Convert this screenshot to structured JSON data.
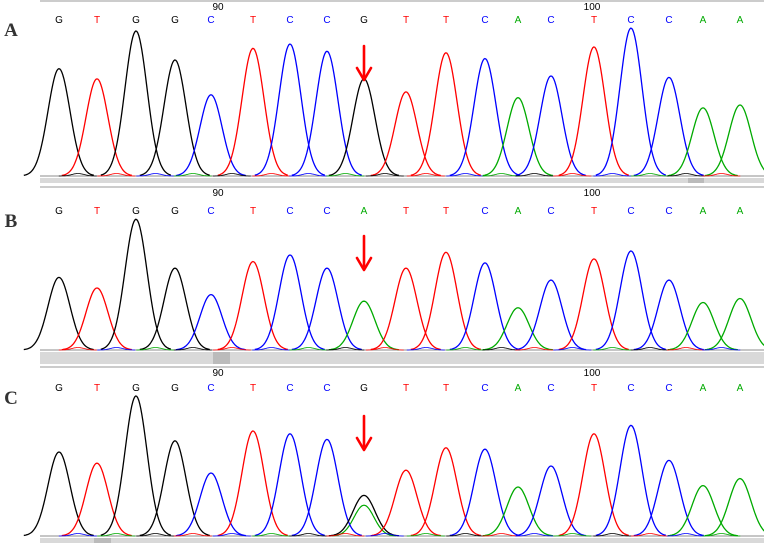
{
  "colors": {
    "G": "#000000",
    "T": "#ff0000",
    "C": "#0000ff",
    "A": "#00aa00",
    "arrow": "#ff0000",
    "ruler": "#999999",
    "baseline_bar": "#d9d9d9",
    "baseline_mark": "#bbbbbb"
  },
  "position_ticks": [
    "90",
    "100"
  ],
  "arrow_icon": "down-arrow-icon",
  "panels": [
    {
      "label": "A",
      "sequence": [
        "G",
        "T",
        "G",
        "G",
        "C",
        "T",
        "C",
        "C",
        "G",
        "T",
        "T",
        "C",
        "A",
        "C",
        "T",
        "C",
        "C",
        "A",
        "A"
      ],
      "peaks": [
        {
          "base": "G",
          "h": 0.74
        },
        {
          "base": "T",
          "h": 0.67
        },
        {
          "base": "G",
          "h": 1.0
        },
        {
          "base": "G",
          "h": 0.8
        },
        {
          "base": "C",
          "h": 0.56
        },
        {
          "base": "T",
          "h": 0.88
        },
        {
          "base": "C",
          "h": 0.91
        },
        {
          "base": "C",
          "h": 0.86
        },
        {
          "base": "G",
          "h": 0.67
        },
        {
          "base": "T",
          "h": 0.58
        },
        {
          "base": "T",
          "h": 0.85
        },
        {
          "base": "C",
          "h": 0.81
        },
        {
          "base": "A",
          "h": 0.54
        },
        {
          "base": "C",
          "h": 0.69
        },
        {
          "base": "T",
          "h": 0.89
        },
        {
          "base": "C",
          "h": 1.02
        },
        {
          "base": "C",
          "h": 0.68
        },
        {
          "base": "A",
          "h": 0.47
        },
        {
          "base": "A",
          "h": 0.49
        }
      ]
    },
    {
      "label": "B",
      "sequence": [
        "G",
        "T",
        "G",
        "G",
        "C",
        "T",
        "C",
        "C",
        "A",
        "T",
        "T",
        "C",
        "A",
        "C",
        "T",
        "C",
        "C",
        "A",
        "A"
      ],
      "peaks": [
        {
          "base": "G",
          "h": 0.55
        },
        {
          "base": "T",
          "h": 0.47
        },
        {
          "base": "G",
          "h": 0.99
        },
        {
          "base": "G",
          "h": 0.62
        },
        {
          "base": "C",
          "h": 0.42
        },
        {
          "base": "T",
          "h": 0.67
        },
        {
          "base": "C",
          "h": 0.72
        },
        {
          "base": "C",
          "h": 0.62
        },
        {
          "base": "A",
          "h": 0.37
        },
        {
          "base": "T",
          "h": 0.62
        },
        {
          "base": "T",
          "h": 0.74
        },
        {
          "base": "C",
          "h": 0.66
        },
        {
          "base": "A",
          "h": 0.32
        },
        {
          "base": "C",
          "h": 0.53
        },
        {
          "base": "T",
          "h": 0.69
        },
        {
          "base": "C",
          "h": 0.75
        },
        {
          "base": "C",
          "h": 0.53
        },
        {
          "base": "A",
          "h": 0.36
        },
        {
          "base": "A",
          "h": 0.39
        }
      ]
    },
    {
      "label": "C",
      "sequence": [
        "G",
        "T",
        "G",
        "G",
        "C",
        "T",
        "C",
        "C",
        "G",
        "T",
        "T",
        "C",
        "A",
        "C",
        "T",
        "C",
        "C",
        "A",
        "A"
      ],
      "peaks": [
        {
          "base": "G",
          "h": 0.6
        },
        {
          "base": "T",
          "h": 0.52
        },
        {
          "base": "G",
          "h": 1.0
        },
        {
          "base": "G",
          "h": 0.68
        },
        {
          "base": "C",
          "h": 0.45
        },
        {
          "base": "T",
          "h": 0.75
        },
        {
          "base": "C",
          "h": 0.73
        },
        {
          "base": "C",
          "h": 0.69
        },
        {
          "base": "G",
          "h": 0.29
        },
        {
          "base": "T",
          "h": 0.47
        },
        {
          "base": "T",
          "h": 0.63
        },
        {
          "base": "C",
          "h": 0.62
        },
        {
          "base": "A",
          "h": 0.35
        },
        {
          "base": "C",
          "h": 0.5
        },
        {
          "base": "T",
          "h": 0.73
        },
        {
          "base": "C",
          "h": 0.79
        },
        {
          "base": "C",
          "h": 0.54
        },
        {
          "base": "A",
          "h": 0.36
        },
        {
          "base": "A",
          "h": 0.41
        }
      ],
      "secondary_peaks": [
        {
          "base": "A",
          "index": 8,
          "h": 0.22
        }
      ]
    }
  ]
}
